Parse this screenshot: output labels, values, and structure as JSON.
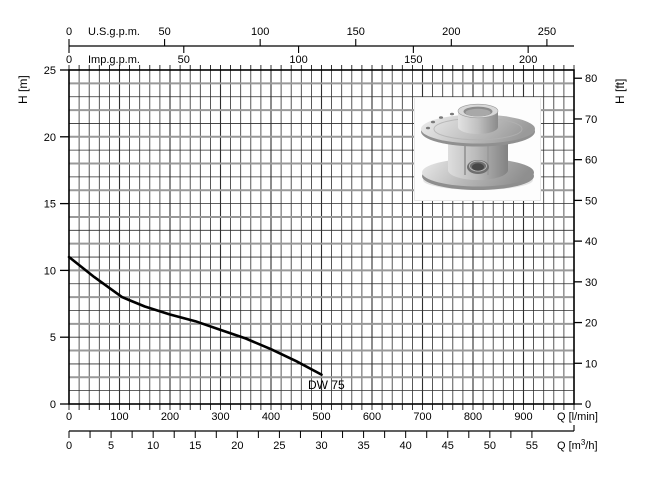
{
  "figure": {
    "curve_label": "DW 75",
    "background": "#ffffff"
  },
  "chart_data": {
    "type": "line",
    "title": "",
    "series": [
      {
        "name": "DW 75",
        "x_unit": "l/min",
        "y_unit": "m",
        "points": [
          [
            0,
            11.0
          ],
          [
            50,
            9.5
          ],
          [
            105,
            8.0
          ],
          [
            150,
            7.3
          ],
          [
            200,
            6.7
          ],
          [
            250,
            6.2
          ],
          [
            300,
            5.55
          ],
          [
            350,
            4.9
          ],
          [
            400,
            4.1
          ],
          [
            450,
            3.2
          ],
          [
            500,
            2.2
          ]
        ]
      }
    ],
    "axes": {
      "bottom_primary": {
        "label": "Q [l/min]",
        "ticks": [
          0,
          100,
          200,
          300,
          400,
          500,
          600,
          700,
          800,
          900
        ],
        "minor_step": 20,
        "min": 0,
        "max": 1000
      },
      "bottom_secondary": {
        "label": "Q [m³/h]",
        "ticks": [
          0,
          5,
          10,
          15,
          20,
          25,
          30,
          35,
          40,
          45,
          50,
          55
        ],
        "minor_step": 2.5,
        "lmin_per_unit": 16.6667
      },
      "top_primary": {
        "label": "U.S.g.p.m.",
        "ticks": [
          0,
          50,
          100,
          150,
          200,
          250
        ],
        "lmin_per_unit": 3.7854
      },
      "top_secondary": {
        "label": "Imp.g.p.m.",
        "ticks": [
          0,
          50,
          100,
          150,
          200
        ],
        "lmin_per_unit": 4.5461
      },
      "left": {
        "label": "H [m]",
        "ticks": [
          0,
          5,
          10,
          15,
          20,
          25
        ],
        "minor_step": 1,
        "min": 0,
        "max": 25
      },
      "right": {
        "label": "H [ft]",
        "ticks": [
          0,
          10,
          20,
          30,
          40,
          50,
          60,
          70,
          80
        ],
        "m_per_unit": 0.3048
      }
    },
    "grid": {
      "on": true,
      "vertical_step_lmin": 20,
      "horizontal_step_m": 1,
      "emphasized_horizontal_every_m": 2
    },
    "legend_position": "none",
    "colors": {
      "curve": "#000000",
      "grid_minor": "#2e2e2e",
      "grid_major": "#999999",
      "axis": "#000000",
      "text": "#000000"
    }
  },
  "pump_photo": {
    "alt": "stainless steel pump impeller"
  }
}
